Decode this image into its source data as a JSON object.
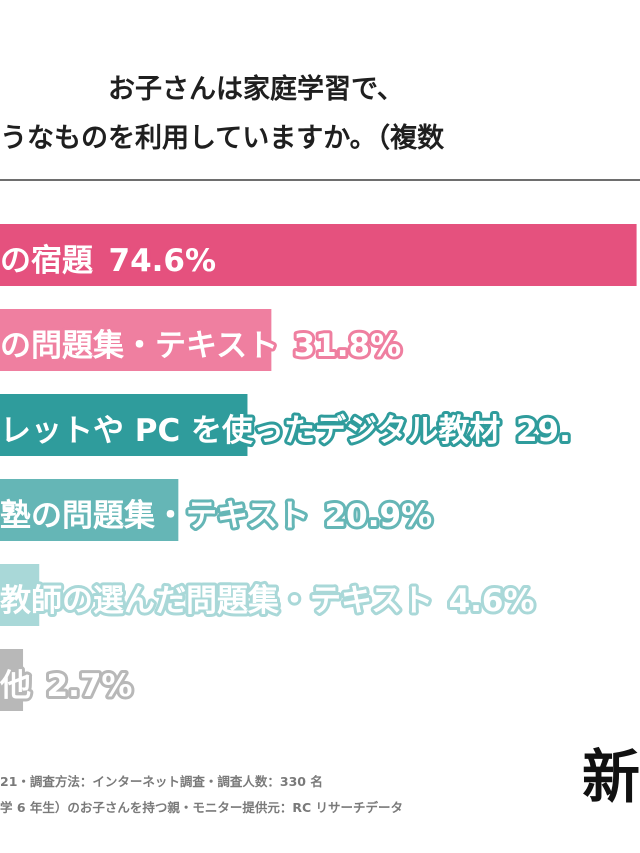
{
  "title": {
    "line1": "お子さんは家庭学習で、",
    "line2": "うなものを利用していますか。（複数"
  },
  "chart_data": {
    "type": "bar",
    "orientation": "horizontal",
    "categories": [
      "の宿題",
      "の問題集・テキスト",
      "レットや PC を使ったデジタル教材",
      "塾の問題集・テキスト",
      "教師の選んだ問題集・テキスト",
      "他"
    ],
    "values": [
      74.6,
      31.8,
      29,
      20.9,
      4.6,
      2.7
    ],
    "value_labels": [
      "74.6%",
      "31.8%",
      "29.",
      "20.9%",
      "4.6%",
      "2.7%"
    ],
    "colors": [
      "#e5517e",
      "#ef7fa0",
      "#2f9c9c",
      "#65b6b6",
      "#a9d8d8",
      "#b8b8b8"
    ],
    "xlim": [
      0,
      75
    ]
  },
  "footnotes": {
    "line1": "21・調査方法：インターネット調査・調査人数：330 名",
    "line2": "学 6 年生）のお子さんを持つ親・モニター提供元：RC リサーチデータ"
  },
  "brand": "新"
}
